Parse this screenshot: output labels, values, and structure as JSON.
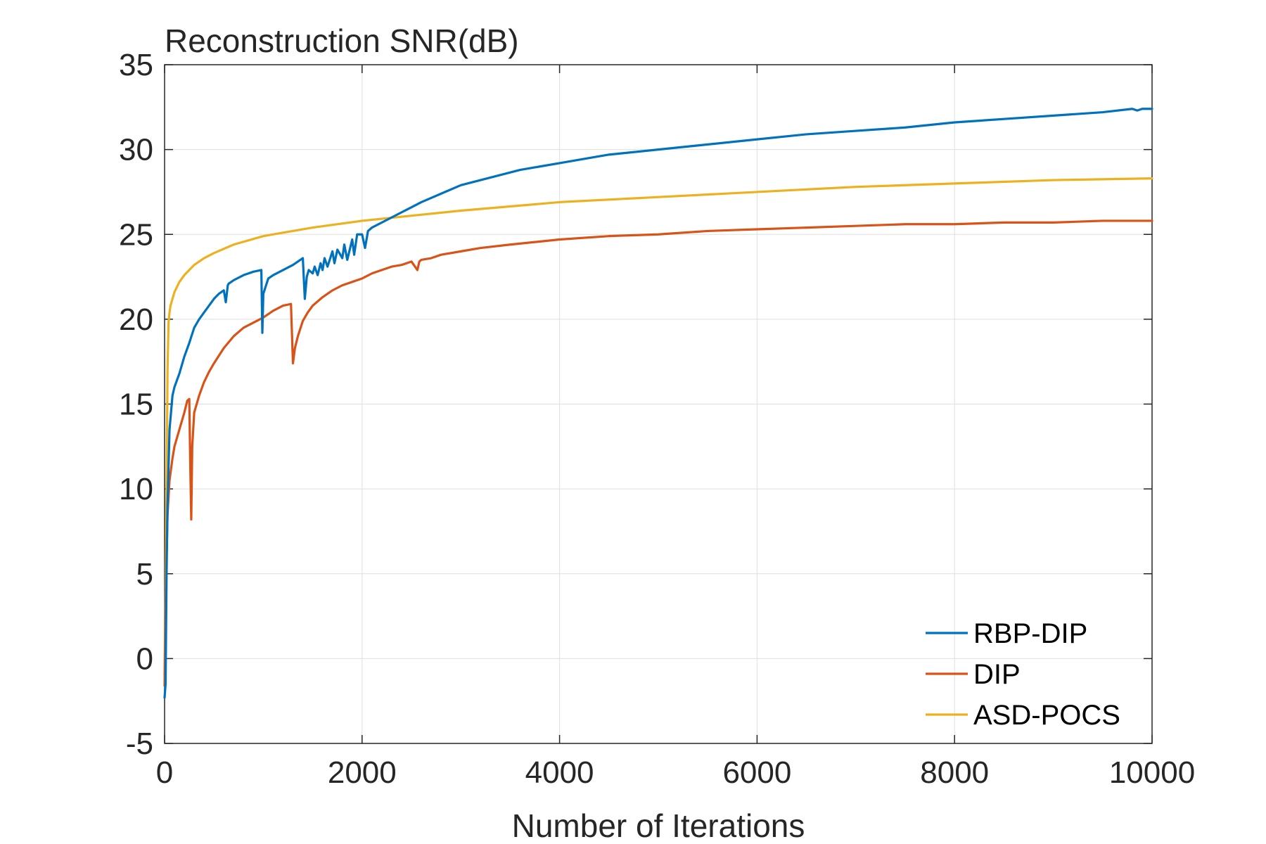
{
  "chart_data": {
    "type": "line",
    "title": "Reconstruction SNR(dB)",
    "xlabel": "Number of Iterations",
    "ylabel": "",
    "xlim": [
      0,
      10000
    ],
    "ylim": [
      -5,
      35
    ],
    "xticks": [
      0,
      2000,
      4000,
      6000,
      8000,
      10000
    ],
    "yticks": [
      -5,
      0,
      5,
      10,
      15,
      20,
      25,
      30,
      35
    ],
    "grid": true,
    "legend_position": "bottom-right",
    "series": [
      {
        "name": "RBP-DIP",
        "color": "#0072BD",
        "x": [
          0,
          10,
          20,
          30,
          50,
          80,
          100,
          150,
          200,
          250,
          300,
          350,
          400,
          450,
          500,
          550,
          600,
          620,
          640,
          650,
          700,
          800,
          900,
          980,
          990,
          1000,
          1050,
          1100,
          1200,
          1300,
          1400,
          1420,
          1440,
          1460,
          1500,
          1520,
          1550,
          1580,
          1600,
          1620,
          1650,
          1700,
          1720,
          1750,
          1800,
          1820,
          1850,
          1900,
          1920,
          1950,
          2000,
          2030,
          2060,
          2080,
          2100,
          2200,
          2300,
          2400,
          2500,
          2600,
          2800,
          3000,
          3200,
          3400,
          3600,
          3800,
          4000,
          4200,
          4500,
          5000,
          5500,
          6000,
          6500,
          7000,
          7500,
          8000,
          8500,
          9000,
          9500,
          9800,
          9850,
          9900,
          10000
        ],
        "values": [
          -2.3,
          -1.5,
          5,
          9,
          13.5,
          15.5,
          16,
          16.8,
          17.8,
          18.6,
          19.5,
          20.0,
          20.4,
          20.8,
          21.2,
          21.5,
          21.7,
          21.0,
          22.0,
          22.1,
          22.3,
          22.6,
          22.8,
          22.9,
          19.2,
          21.5,
          22.4,
          22.6,
          22.9,
          23.2,
          23.6,
          21.2,
          22.5,
          22.9,
          22.7,
          23.1,
          22.6,
          23.3,
          22.9,
          23.6,
          23.1,
          24.0,
          23.3,
          24.1,
          23.6,
          24.4,
          23.5,
          24.7,
          23.8,
          25.0,
          25.0,
          24.2,
          25.2,
          25.3,
          25.4,
          25.7,
          26.0,
          26.3,
          26.6,
          26.9,
          27.4,
          27.9,
          28.2,
          28.5,
          28.8,
          29.0,
          29.2,
          29.4,
          29.7,
          30.0,
          30.3,
          30.6,
          30.9,
          31.1,
          31.3,
          31.6,
          31.8,
          32.0,
          32.2,
          32.4,
          32.3,
          32.4,
          32.4
        ]
      },
      {
        "name": "DIP",
        "color": "#D95319",
        "x": [
          0,
          10,
          20,
          30,
          50,
          80,
          100,
          150,
          200,
          230,
          250,
          260,
          270,
          280,
          300,
          350,
          400,
          450,
          500,
          600,
          700,
          800,
          900,
          1000,
          1100,
          1200,
          1280,
          1300,
          1320,
          1350,
          1400,
          1450,
          1500,
          1600,
          1700,
          1800,
          1900,
          2000,
          2100,
          2200,
          2300,
          2400,
          2500,
          2560,
          2580,
          2600,
          2700,
          2800,
          3000,
          3200,
          3500,
          4000,
          4500,
          5000,
          5500,
          6000,
          6500,
          7000,
          7500,
          8000,
          8500,
          9000,
          9500,
          10000
        ],
        "values": [
          -1.6,
          3.0,
          6.0,
          8.5,
          10.5,
          11.8,
          12.5,
          13.5,
          14.5,
          15.2,
          15.3,
          11.5,
          8.2,
          12.5,
          14.5,
          15.5,
          16.3,
          16.9,
          17.4,
          18.3,
          19.0,
          19.5,
          19.8,
          20.1,
          20.5,
          20.8,
          20.9,
          17.4,
          18.3,
          19.0,
          19.9,
          20.4,
          20.8,
          21.3,
          21.7,
          22.0,
          22.2,
          22.4,
          22.7,
          22.9,
          23.1,
          23.2,
          23.4,
          22.9,
          23.4,
          23.5,
          23.6,
          23.8,
          24.0,
          24.2,
          24.4,
          24.7,
          24.9,
          25.0,
          25.2,
          25.3,
          25.4,
          25.5,
          25.6,
          25.6,
          25.7,
          25.7,
          25.8,
          25.8
        ]
      },
      {
        "name": "ASD-POCS",
        "color": "#EDB120",
        "x": [
          0,
          10,
          20,
          30,
          40,
          50,
          60,
          80,
          100,
          150,
          200,
          300,
          400,
          500,
          700,
          1000,
          1500,
          2000,
          2500,
          3000,
          4000,
          5000,
          6000,
          7000,
          8000,
          9000,
          10000
        ],
        "values": [
          -1.0,
          4.0,
          10.0,
          17.0,
          19.8,
          20.4,
          20.8,
          21.2,
          21.6,
          22.2,
          22.6,
          23.2,
          23.6,
          23.9,
          24.4,
          24.9,
          25.4,
          25.8,
          26.1,
          26.4,
          26.9,
          27.2,
          27.5,
          27.8,
          28.0,
          28.2,
          28.3
        ]
      }
    ]
  }
}
